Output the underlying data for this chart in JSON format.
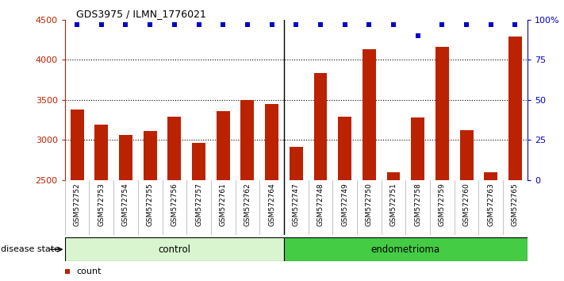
{
  "title": "GDS3975 / ILMN_1776021",
  "samples": [
    "GSM572752",
    "GSM572753",
    "GSM572754",
    "GSM572755",
    "GSM572756",
    "GSM572757",
    "GSM572761",
    "GSM572762",
    "GSM572764",
    "GSM572747",
    "GSM572748",
    "GSM572749",
    "GSM572750",
    "GSM572751",
    "GSM572758",
    "GSM572759",
    "GSM572760",
    "GSM572763",
    "GSM572765"
  ],
  "counts": [
    3380,
    3190,
    3060,
    3110,
    3285,
    2960,
    3355,
    3500,
    3450,
    2910,
    3830,
    3290,
    4130,
    2590,
    3275,
    4160,
    3120,
    2590,
    4290
  ],
  "percentile_ranks": [
    97,
    97,
    97,
    97,
    97,
    97,
    97,
    97,
    97,
    97,
    97,
    97,
    97,
    97,
    90,
    97,
    97,
    97,
    97
  ],
  "control_count": 9,
  "endometrioma_count": 10,
  "ylim_left": [
    2500,
    4500
  ],
  "yticks_left": [
    2500,
    3000,
    3500,
    4000,
    4500
  ],
  "ylim_right": [
    0,
    100
  ],
  "yticks_right": [
    0,
    25,
    50,
    75,
    100
  ],
  "bar_color": "#bb2200",
  "dot_color": "#0000cc",
  "control_fill": "#d8f5d0",
  "control_edge": "#000000",
  "endometrioma_fill": "#44cc44",
  "endometrioma_edge": "#000000",
  "xtick_bg": "#d0d0d0",
  "grid_yticks": [
    3000,
    3500,
    4000
  ]
}
